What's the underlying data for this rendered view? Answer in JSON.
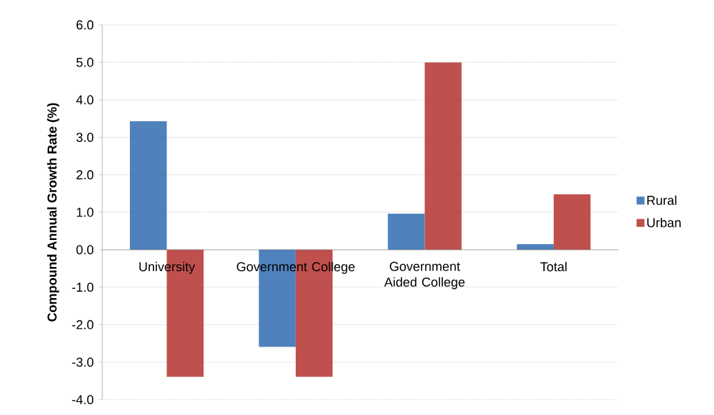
{
  "chart_data": {
    "type": "bar",
    "ylabel": "Compound Annual Growth Rate (%)",
    "categories": [
      "University",
      "Government College",
      "Government Aided College",
      "Total"
    ],
    "series": [
      {
        "name": "Rural",
        "color": "#4f81bd",
        "values": [
          3.43,
          -2.59,
          0.96,
          0.15
        ]
      },
      {
        "name": "Urban",
        "color": "#c0504d",
        "values": [
          -3.39,
          -3.39,
          5.0,
          1.48
        ]
      }
    ],
    "ylim": [
      -4,
      6
    ],
    "yticks": [
      {
        "value": -4,
        "label": "-4.0"
      },
      {
        "value": -3,
        "label": "-3.0"
      },
      {
        "value": -2,
        "label": "-2.0"
      },
      {
        "value": -1,
        "label": "-1.0"
      },
      {
        "value": 0,
        "label": "0.0"
      },
      {
        "value": 1,
        "label": "1.0"
      },
      {
        "value": 2,
        "label": "2.0"
      },
      {
        "value": 3,
        "label": "3.0"
      },
      {
        "value": 4,
        "label": "4.0"
      },
      {
        "value": 5,
        "label": "5.0"
      },
      {
        "value": 6,
        "label": "6.0"
      }
    ],
    "grid": "y",
    "legend": "right"
  }
}
